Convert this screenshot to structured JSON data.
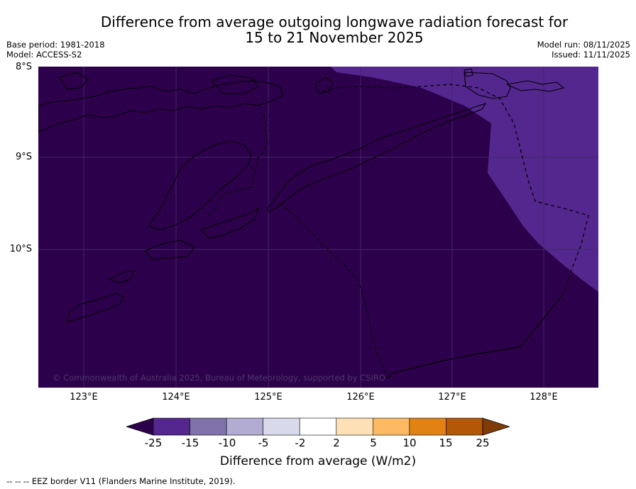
{
  "title_line1": "Difference from average outgoing longwave radiation forecast for",
  "title_line2": "15 to 21 November 2025",
  "meta_left": {
    "base_period": "Base period: 1981-2018",
    "model": "Model: ACCESS-S2"
  },
  "meta_right": {
    "model_run": "Model run: 08/11/2025",
    "issued": "Issued: 11/11/2025"
  },
  "lat_labels": [
    "8°S",
    "9°S",
    "10°S"
  ],
  "lon_labels": [
    "123°E",
    "124°E",
    "125°E",
    "126°E",
    "127°E",
    "128°E"
  ],
  "copyright": "© Commonwealth of Australia 2025, Bureau of Meteorology, supported by CSIRO",
  "colorbar": {
    "ticks": [
      "-25",
      "-15",
      "-10",
      "-5",
      "-2",
      "2",
      "5",
      "10",
      "15",
      "25"
    ],
    "colors": [
      "#54278f",
      "#8073ac",
      "#b2abd2",
      "#d8daeb",
      "#ffffff",
      "#fee0b6",
      "#fdb863",
      "#e08214",
      "#b35806"
    ],
    "under_color": "#2d004b",
    "over_color": "#7f3b08",
    "label": "Difference from average (W/m2)"
  },
  "fill_colors": {
    "deep": "#2d004b",
    "light": "#54278f"
  },
  "legend_text": "--  --  -- EEZ border V11 (Flanders Marine Institute, 2019)."
}
